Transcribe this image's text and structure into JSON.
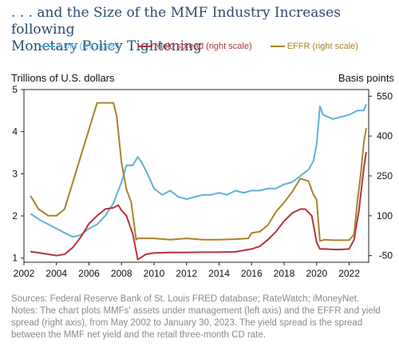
{
  "title_line1": ". . . and the Size of the MMF Industry Increases following",
  "title_line2": "Monetary Policy Tightening",
  "left_axis_title": "Trillions of U.S. dollars",
  "right_axis_title": "Basis points",
  "sources": "Sources: Federal Reserve Bank of St. Louis FRED database; RateWatch; iMoneyNet.",
  "notes": "Notes: The chart plots MMFs' assets under management (left axis) and the EFFR and yield spread (right axis), from May 2002 to January 30, 2023. The yield spread is the spread between the MMF net yield and the retail three-month CD rate.",
  "colors": {
    "aum": "#5fb2d9",
    "spread": "#b5343a",
    "effr": "#a8822a"
  },
  "chart_data": {
    "type": "line",
    "title": ". . . and the Size of the MMF Industry Increases following Monetary Policy Tightening",
    "xlim": [
      2002,
      2023.2
    ],
    "x_ticks": [
      "2002",
      "2004",
      "2006",
      "2008",
      "2010",
      "2012",
      "2014",
      "2016",
      "2018",
      "2020",
      "2022"
    ],
    "y_left": {
      "label": "Trillions of U.S. dollars",
      "lim": [
        0.9,
        5
      ],
      "ticks": [
        "1",
        "2",
        "3",
        "4",
        "5"
      ]
    },
    "y_right": {
      "label": "Basis points",
      "lim": [
        -75,
        575
      ],
      "ticks": [
        "-50",
        "100",
        "250",
        "400",
        "550"
      ]
    },
    "grid": false,
    "legend": "top",
    "series": [
      {
        "name": "AUM (left scale)",
        "axis": "left",
        "color": "#5fb2d9",
        "x": [
          2002.4,
          2003,
          2003.5,
          2004,
          2004.5,
          2005,
          2005.5,
          2006,
          2006.5,
          2007,
          2007.5,
          2008,
          2008.3,
          2008.7,
          2009,
          2009.2,
          2009.6,
          2010,
          2010.5,
          2011,
          2011.5,
          2012,
          2012.5,
          2013,
          2013.5,
          2014,
          2014.5,
          2015,
          2015.5,
          2016,
          2016.5,
          2017,
          2017.5,
          2018,
          2018.5,
          2019,
          2019.5,
          2019.8,
          2020.0,
          2020.2,
          2020.4,
          2020.7,
          2021,
          2021.5,
          2022,
          2022.5,
          2022.9,
          2023.05
        ],
        "values": [
          2.05,
          1.9,
          1.8,
          1.7,
          1.6,
          1.5,
          1.55,
          1.7,
          1.8,
          2.0,
          2.3,
          2.8,
          3.2,
          3.2,
          3.4,
          3.3,
          3.0,
          2.65,
          2.5,
          2.6,
          2.45,
          2.4,
          2.45,
          2.5,
          2.5,
          2.55,
          2.5,
          2.6,
          2.55,
          2.6,
          2.6,
          2.65,
          2.65,
          2.75,
          2.8,
          2.95,
          3.1,
          3.3,
          3.7,
          4.6,
          4.4,
          4.35,
          4.3,
          4.35,
          4.4,
          4.5,
          4.5,
          4.65
        ]
      },
      {
        "name": "Yield spread (right scale)",
        "axis": "right",
        "color": "#b5343a",
        "x": [
          2002.4,
          2003,
          2003.5,
          2004,
          2004.5,
          2005,
          2005.5,
          2006,
          2006.5,
          2007,
          2007.5,
          2007.8,
          2008,
          2008.3,
          2008.7,
          2009,
          2009.5,
          2010,
          2011,
          2012,
          2013,
          2014,
          2015,
          2016,
          2016.5,
          2017,
          2017.5,
          2018,
          2018.5,
          2019,
          2019.3,
          2019.7,
          2020,
          2020.2,
          2020.5,
          2021,
          2021.5,
          2022,
          2022.3,
          2022.6,
          2022.9,
          2023.05
        ],
        "values": [
          -35,
          -40,
          -45,
          -50,
          -45,
          -20,
          20,
          70,
          100,
          125,
          130,
          140,
          120,
          100,
          30,
          -65,
          -45,
          -40,
          -38,
          -38,
          -37,
          -37,
          -36,
          -25,
          -15,
          10,
          40,
          80,
          110,
          125,
          125,
          100,
          0,
          -25,
          -25,
          -27,
          -27,
          -25,
          10,
          120,
          280,
          340
        ]
      },
      {
        "name": "EFFR (right scale)",
        "axis": "right",
        "color": "#a8822a",
        "x": [
          2002.4,
          2002.9,
          2003.5,
          2004,
          2004.5,
          2005,
          2005.5,
          2006,
          2006.5,
          2006.7,
          2007,
          2007.5,
          2007.7,
          2008,
          2008.3,
          2008.6,
          2008.9,
          2009,
          2009.5,
          2010,
          2011,
          2012,
          2013,
          2014,
          2015,
          2015.8,
          2016,
          2016.5,
          2017,
          2017.5,
          2018,
          2018.5,
          2019,
          2019.5,
          2019.8,
          2020,
          2020.2,
          2020.5,
          2021,
          2021.5,
          2022,
          2022.3,
          2022.5,
          2022.7,
          2022.9,
          2023.05
        ],
        "values": [
          175,
          125,
          100,
          100,
          125,
          225,
          325,
          425,
          525,
          525,
          525,
          525,
          475,
          300,
          200,
          150,
          10,
          15,
          15,
          15,
          10,
          15,
          10,
          10,
          12,
          15,
          35,
          40,
          65,
          115,
          150,
          190,
          240,
          230,
          180,
          160,
          5,
          10,
          8,
          8,
          8,
          30,
          150,
          250,
          375,
          430
        ]
      }
    ]
  }
}
